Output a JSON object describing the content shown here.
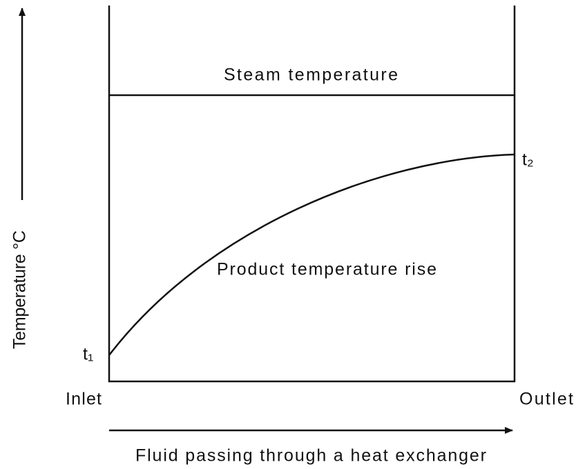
{
  "diagram": {
    "labels": {
      "steam": "Steam temperature",
      "product": "Product temperature rise",
      "t1": "t₁",
      "t2": "t₂",
      "inlet": "Inlet",
      "outlet": "Outlet",
      "x_axis": "Fluid passing through a heat exchanger",
      "y_axis": "Temperature °C"
    }
  }
}
